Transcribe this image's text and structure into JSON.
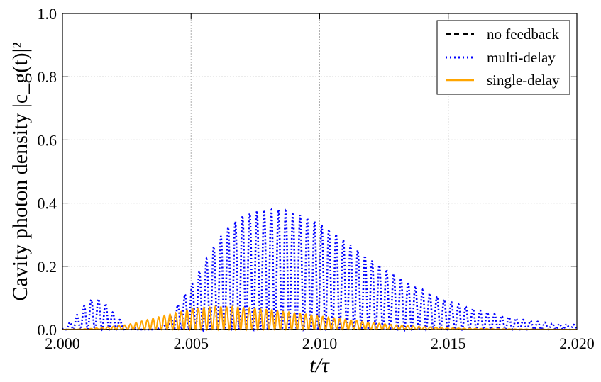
{
  "chart_data": {
    "type": "line",
    "title": "",
    "xlabel": "t/τ",
    "ylabel": "Cavity photon density |c_g(t)|²",
    "xlim": [
      2.0,
      2.02
    ],
    "ylim": [
      0.0,
      1.0
    ],
    "x_ticks": [
      "2.000",
      "2.005",
      "2.010",
      "2.015",
      "2.020"
    ],
    "y_ticks": [
      "0.0",
      "0.2",
      "0.4",
      "0.6",
      "0.8",
      "1.0"
    ],
    "grid": true,
    "legend_position": "top-right",
    "series": [
      {
        "name": "no feedback",
        "color": "#000000",
        "style": "dashed",
        "x": [
          2.0,
          2.005,
          2.01,
          2.015,
          2.02
        ],
        "y": [
          0.0,
          0.0,
          0.0,
          0.0,
          0.0
        ]
      },
      {
        "name": "multi-delay",
        "color": "#0000ff",
        "style": "dotted-oscillating",
        "x": [
          2.0,
          2.0005,
          2.001,
          2.0013,
          2.0016,
          2.002,
          2.0025,
          2.003,
          2.0035,
          2.004,
          2.0045,
          2.005,
          2.0055,
          2.006,
          2.0065,
          2.007,
          2.0075,
          2.008,
          2.0085,
          2.009,
          2.0095,
          2.01,
          2.0105,
          2.011,
          2.0115,
          2.012,
          2.013,
          2.014,
          2.015,
          2.016,
          2.017,
          2.018,
          2.019,
          2.02
        ],
        "y": [
          0.0,
          0.04,
          0.09,
          0.1,
          0.09,
          0.05,
          0.01,
          0.0,
          0.0,
          0.02,
          0.08,
          0.14,
          0.21,
          0.28,
          0.33,
          0.36,
          0.375,
          0.38,
          0.38,
          0.37,
          0.355,
          0.335,
          0.31,
          0.28,
          0.25,
          0.22,
          0.17,
          0.125,
          0.09,
          0.065,
          0.045,
          0.03,
          0.02,
          0.015
        ]
      },
      {
        "name": "single-delay",
        "color": "#ffa500",
        "style": "solid-oscillating",
        "x": [
          2.0,
          2.001,
          2.002,
          2.0025,
          2.003,
          2.0035,
          2.004,
          2.0045,
          2.005,
          2.0055,
          2.006,
          2.0065,
          2.007,
          2.0075,
          2.008,
          2.0085,
          2.009,
          2.0095,
          2.01,
          2.0105,
          2.011,
          2.012,
          2.013,
          2.014,
          2.015,
          2.016,
          2.018,
          2.02
        ],
        "y": [
          0.0,
          0.002,
          0.01,
          0.015,
          0.025,
          0.035,
          0.045,
          0.055,
          0.065,
          0.07,
          0.072,
          0.072,
          0.07,
          0.067,
          0.063,
          0.058,
          0.053,
          0.048,
          0.043,
          0.037,
          0.032,
          0.022,
          0.014,
          0.009,
          0.005,
          0.003,
          0.001,
          0.0
        ]
      }
    ]
  }
}
